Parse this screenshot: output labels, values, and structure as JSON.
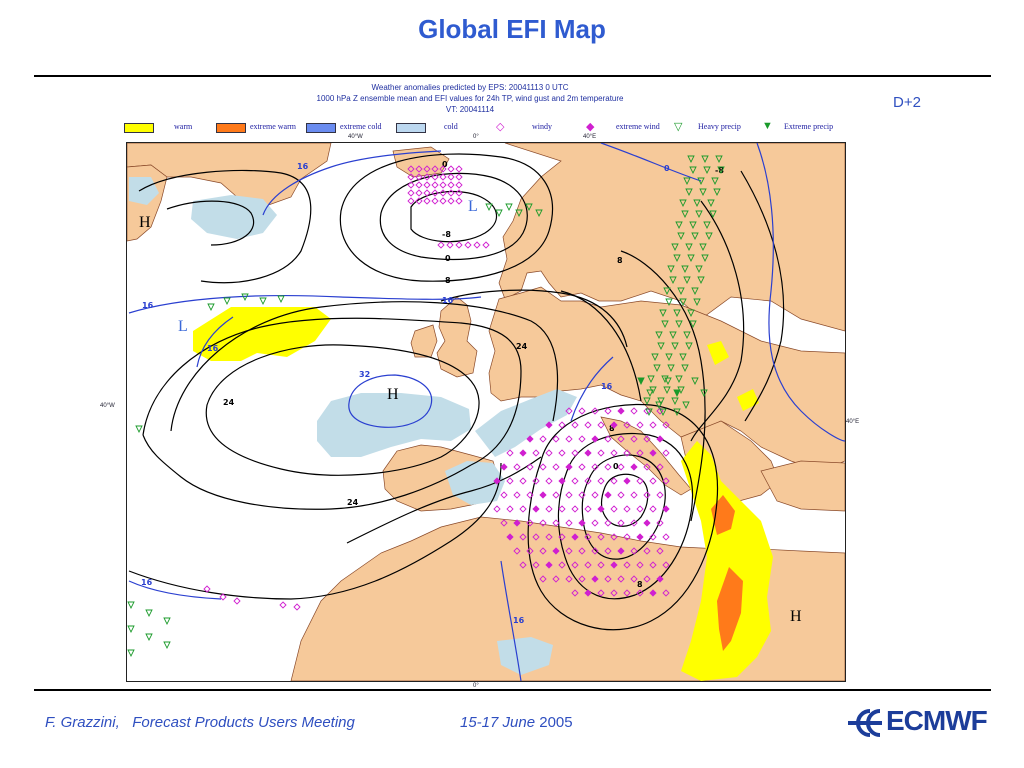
{
  "slide": {
    "title": "Global EFI Map"
  },
  "map_header": {
    "line1": "Weather anomalies predicted by EPS: 20041113 0 UTC",
    "line2": "1000 hPa Z ensemble mean and EFI values for 24h TP, wind gust and 2m temperature",
    "line3": "VT: 20041114",
    "forecast_day": "D+2"
  },
  "legend": [
    {
      "label": "warm",
      "color": "#ffff00",
      "kind": "swatch"
    },
    {
      "label": "extreme warm",
      "color": "#ff7a1a",
      "kind": "swatch"
    },
    {
      "label": "extreme cold",
      "color": "#6a8cf0",
      "kind": "swatch"
    },
    {
      "label": "cold",
      "color": "#bcd8f0",
      "kind": "swatch"
    },
    {
      "label": "windy",
      "color": "#d020d0",
      "kind": "open-diamond"
    },
    {
      "label": "extreme wind",
      "color": "#d020d0",
      "kind": "filled-diamond"
    },
    {
      "label": "Heavy precip",
      "color": "#1a9a2a",
      "kind": "open-triangle"
    },
    {
      "label": "Extreme precip",
      "color": "#1a9a2a",
      "kind": "filled-triangle"
    }
  ],
  "axis_labels": {
    "top_left": "40°W",
    "top_mid": "0°",
    "top_right": "40°E",
    "left": "40°W",
    "right": "40°E",
    "bottom": "0°"
  },
  "contour_labels": [
    "16",
    "16",
    "16",
    "16",
    "16",
    "16",
    "0",
    "0",
    "0",
    "-8",
    "8",
    "8",
    "8",
    "24",
    "24",
    "24",
    "32",
    "8",
    "0",
    "-8",
    "16"
  ],
  "pressure_centres": [
    "H",
    "H",
    "H",
    "H",
    "L",
    "L"
  ],
  "colors": {
    "land": "#f6c99a",
    "sea": "#ffffff",
    "contour": "#000000",
    "contour_blue": "#2a3fd0",
    "cold": "#c2dde8",
    "warm": "#ffff00",
    "extreme_warm": "#ff7a1a",
    "title_blue": "#2f5bd0"
  },
  "footer": {
    "author": "F. Grazzini,",
    "meeting": "Forecast Products Users Meeting",
    "dates": "15-17",
    "month": "June",
    "year": "2005",
    "logo": "ECMWF"
  }
}
